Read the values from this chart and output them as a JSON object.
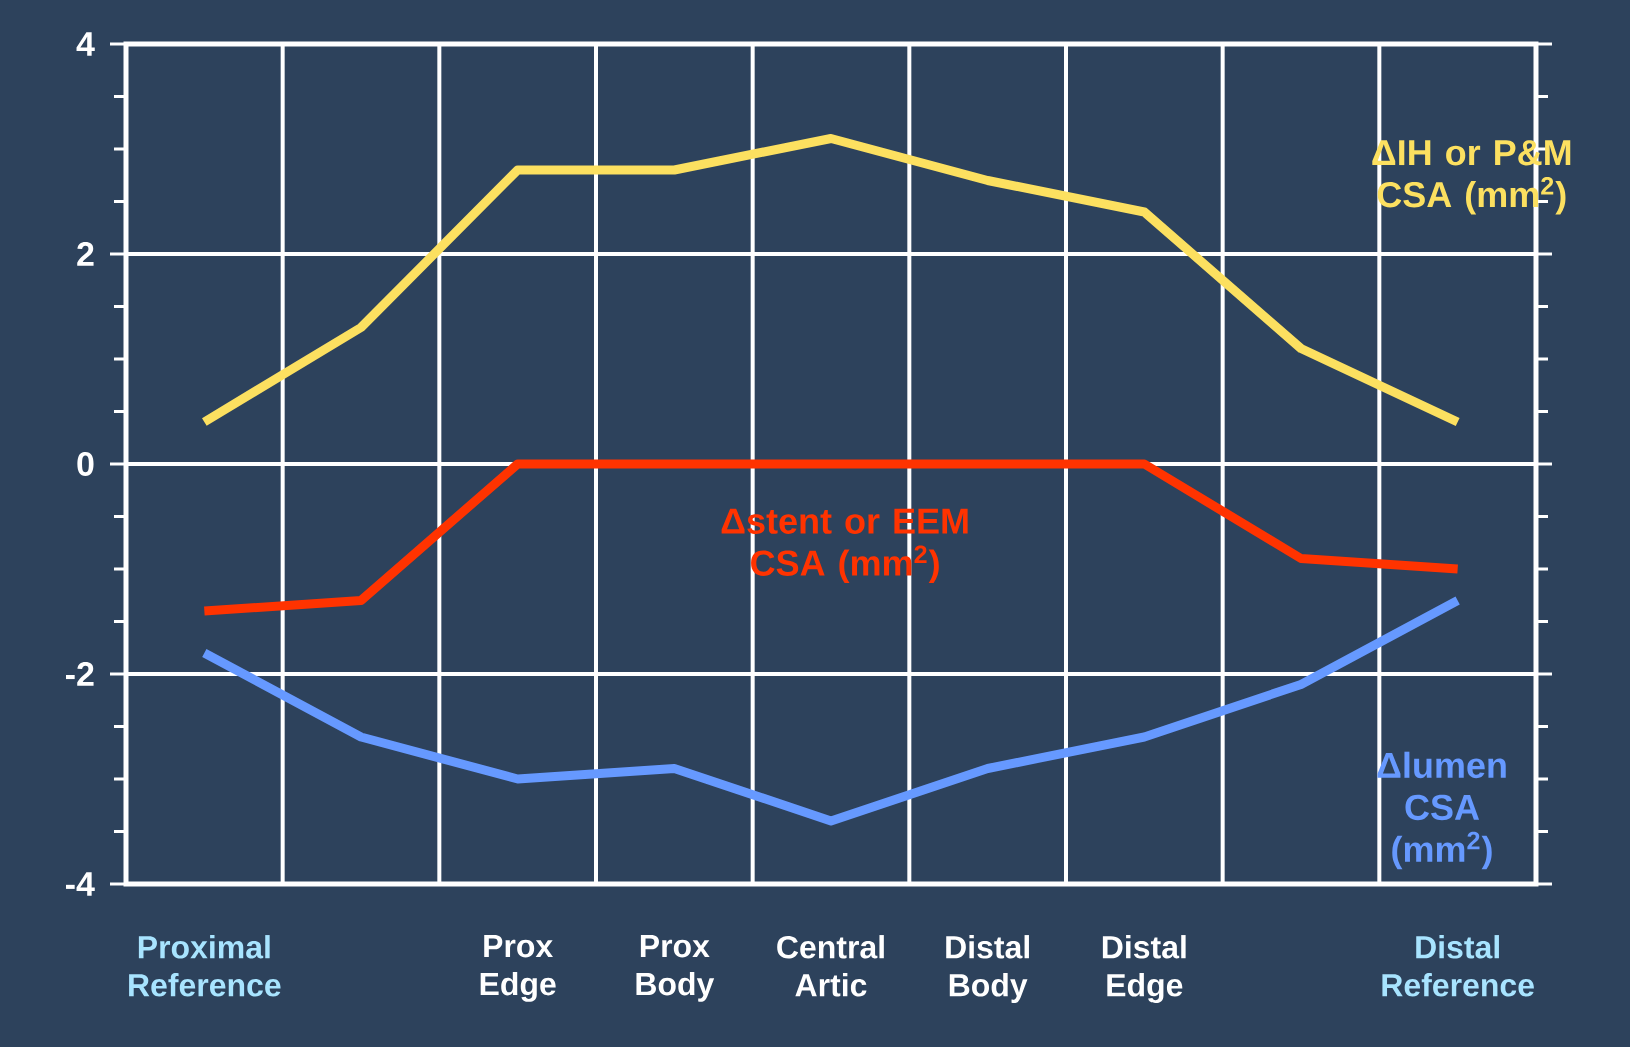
{
  "chart_data": {
    "type": "line",
    "categories": [
      "Proximal Reference",
      null,
      "Prox Edge",
      "Prox Body",
      "Central Artic",
      "Distal Body",
      "Distal Edge",
      null,
      "Distal Reference"
    ],
    "series": [
      {
        "name": "ΔIH or P&M CSA (mm$^{2}$)",
        "color": "#fce060",
        "values": [
          0.4,
          1.3,
          2.8,
          2.8,
          3.1,
          2.7,
          2.4,
          1.1,
          0.4
        ]
      },
      {
        "name": "Δstent or EEM CSA (mm$^{2}$)",
        "color": "#ff3300",
        "values": [
          -1.4,
          -1.3,
          0,
          0,
          0,
          0,
          0,
          -0.9,
          -1.0
        ]
      },
      {
        "name": "Δlumen CSA (mm$^{2}$)",
        "color": "#6699ff",
        "values": [
          -1.8,
          -2.6,
          -3.0,
          -2.9,
          -3.4,
          -2.9,
          -2.6,
          -2.1,
          -1.3
        ]
      }
    ],
    "ylim": [
      -4,
      4
    ],
    "yticks": [
      -4,
      -2,
      0,
      2,
      4
    ],
    "grid": true,
    "legend": false,
    "marker": "none",
    "line_style": "solid"
  }
}
